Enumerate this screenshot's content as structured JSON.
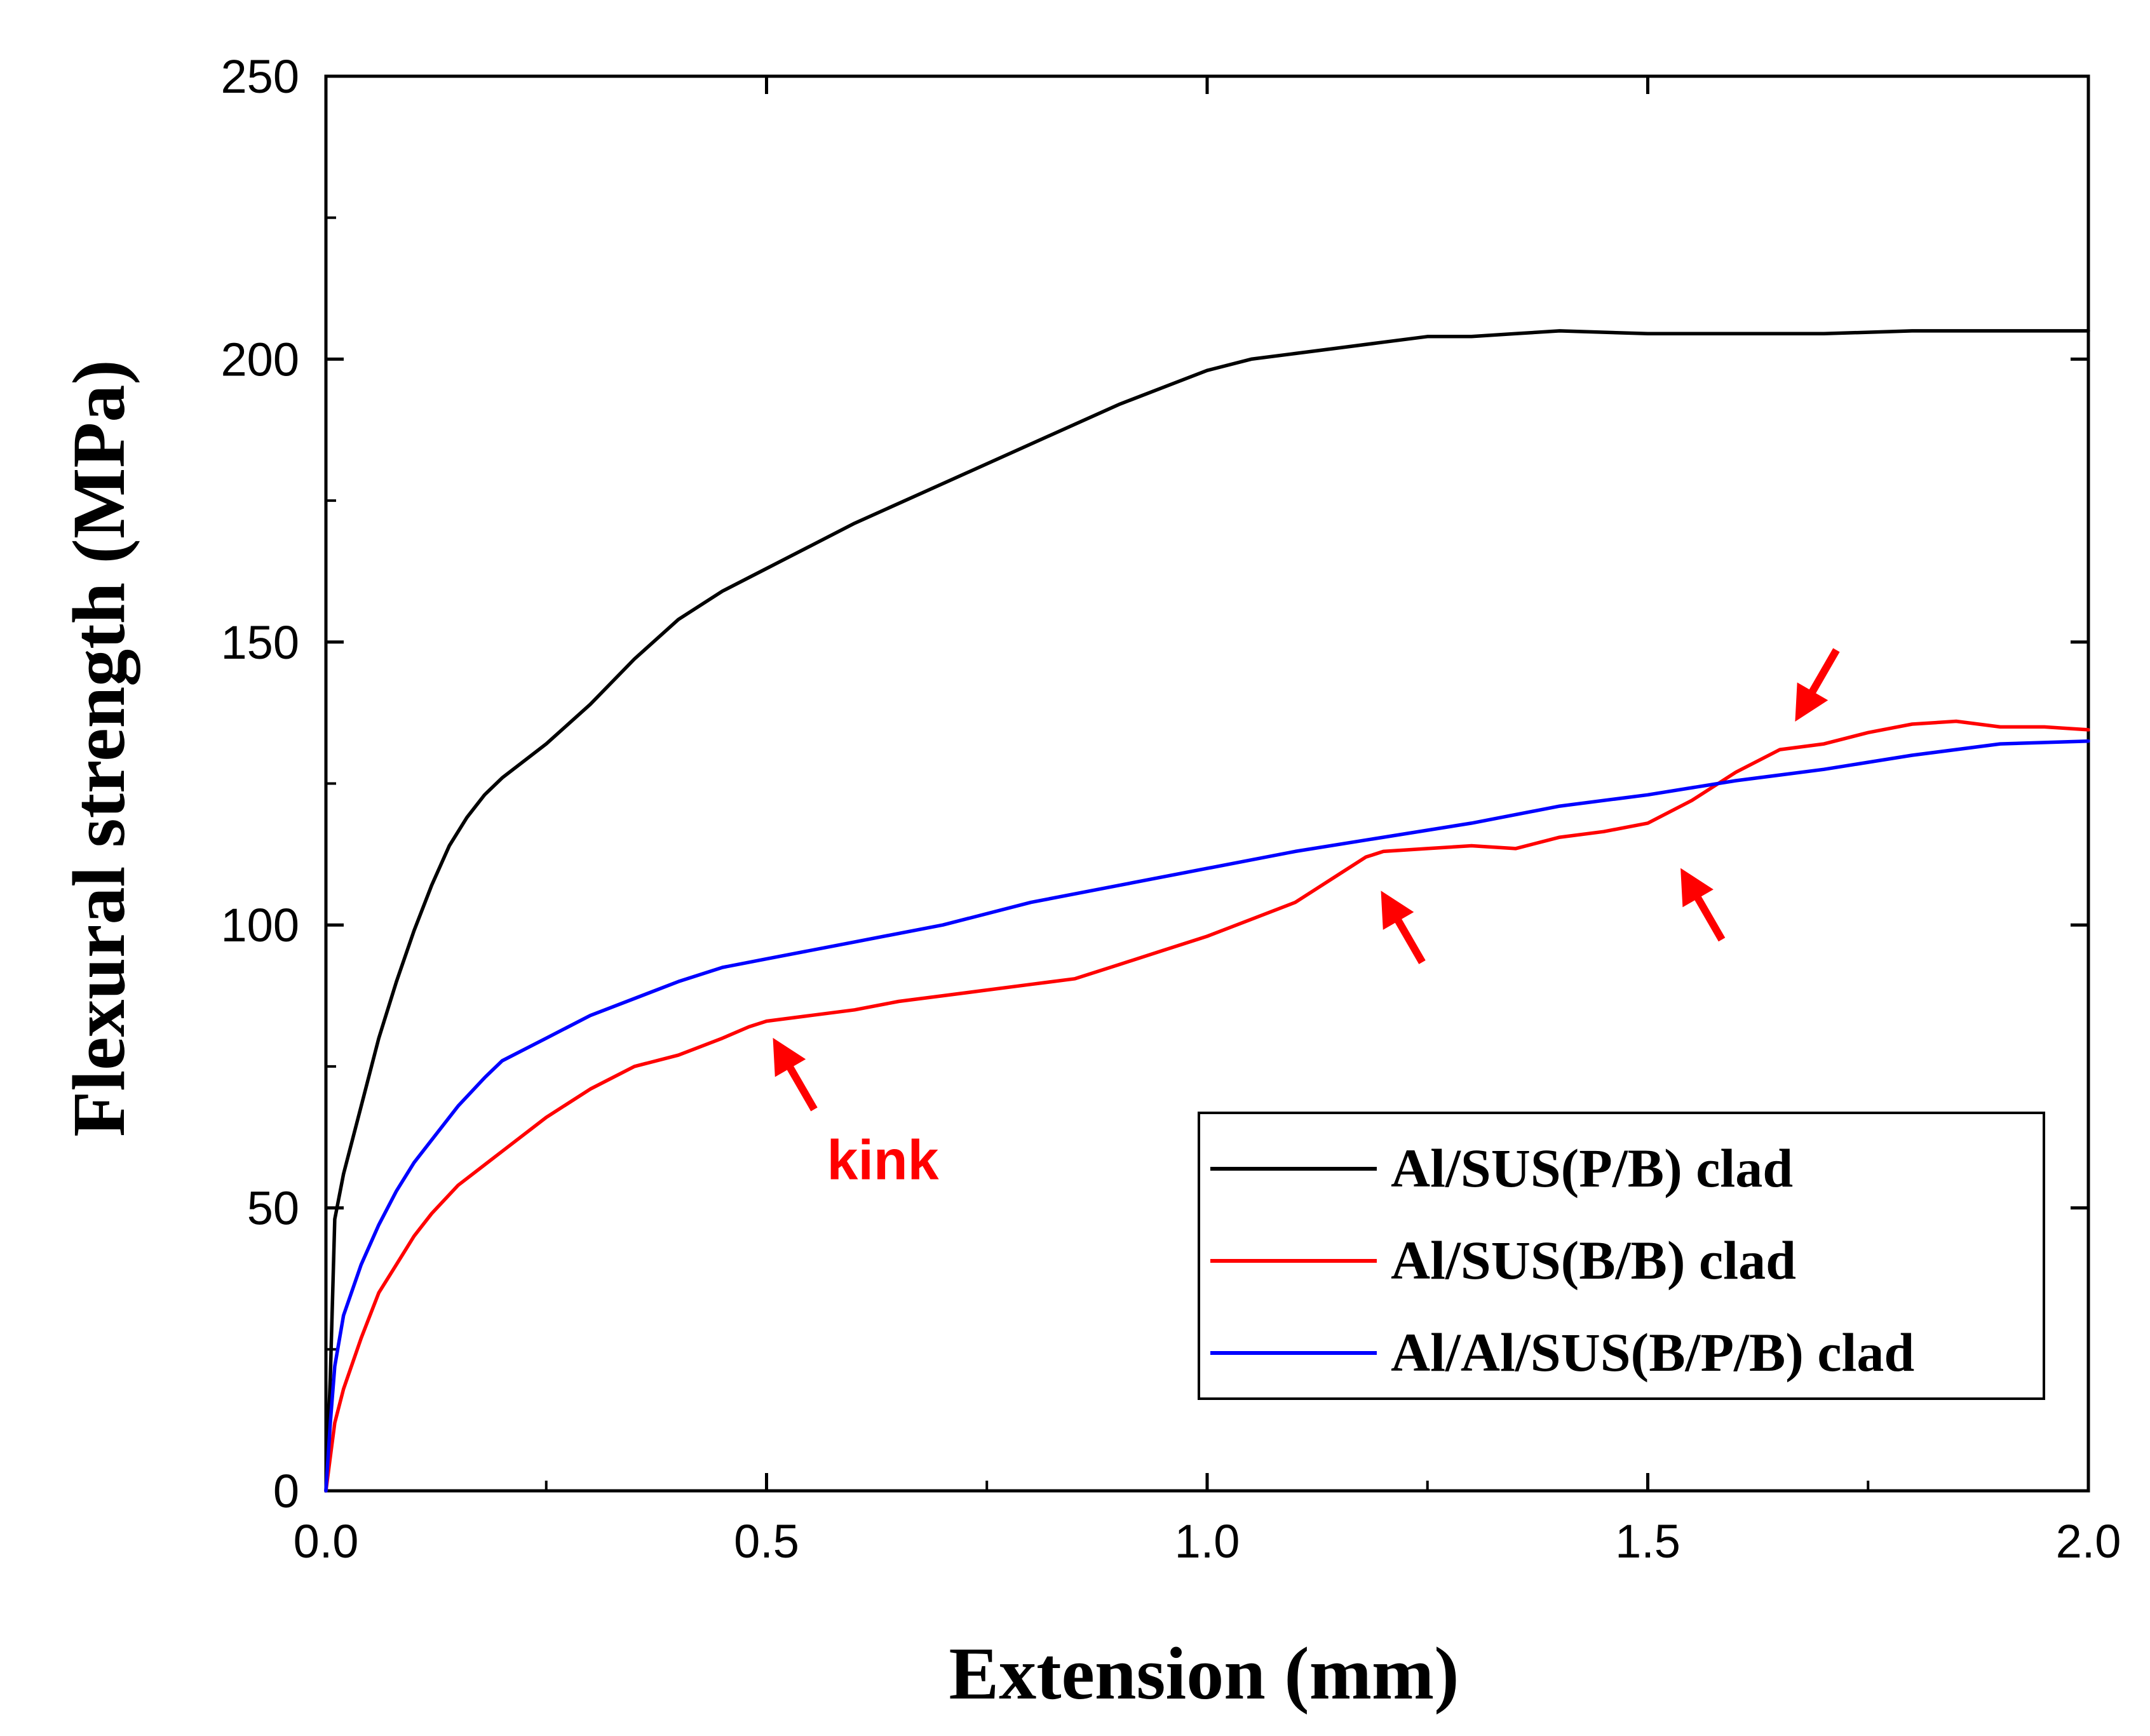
{
  "chart_data": {
    "type": "line",
    "title": "",
    "xlabel": "Extension (mm)",
    "ylabel": "Flexural strength (MPa)",
    "xlim": [
      0,
      2.0
    ],
    "ylim": [
      0,
      250
    ],
    "x_ticks": [
      0.0,
      0.5,
      1.0,
      1.5,
      2.0
    ],
    "x_tick_labels": [
      "0.0",
      "0.5",
      "1.0",
      "1.5",
      "2.0"
    ],
    "y_ticks": [
      0,
      50,
      100,
      150,
      200,
      250
    ],
    "y_tick_labels": [
      "0",
      "50",
      "100",
      "150",
      "200",
      "250"
    ],
    "x_minor_step": 0.25,
    "y_minor_step": 25,
    "grid": false,
    "legend_position": "bottom-right",
    "series": [
      {
        "name": "Al/SUS(P/B) clad",
        "color": "#000000",
        "points": [
          [
            0,
            0
          ],
          [
            0.005,
            20
          ],
          [
            0.01,
            48
          ],
          [
            0.02,
            56
          ],
          [
            0.04,
            68
          ],
          [
            0.06,
            80
          ],
          [
            0.08,
            90
          ],
          [
            0.1,
            99
          ],
          [
            0.12,
            107
          ],
          [
            0.14,
            114
          ],
          [
            0.16,
            119
          ],
          [
            0.18,
            123
          ],
          [
            0.2,
            126
          ],
          [
            0.25,
            132
          ],
          [
            0.3,
            139
          ],
          [
            0.35,
            147
          ],
          [
            0.4,
            154
          ],
          [
            0.45,
            159
          ],
          [
            0.5,
            163
          ],
          [
            0.55,
            167
          ],
          [
            0.6,
            171
          ],
          [
            0.7,
            178
          ],
          [
            0.8,
            185
          ],
          [
            0.9,
            192
          ],
          [
            0.95,
            195
          ],
          [
            1.0,
            198
          ],
          [
            1.05,
            200
          ],
          [
            1.1,
            201
          ],
          [
            1.15,
            202
          ],
          [
            1.2,
            203
          ],
          [
            1.25,
            204
          ],
          [
            1.3,
            204
          ],
          [
            1.35,
            204.5
          ],
          [
            1.4,
            205
          ],
          [
            1.5,
            204.5
          ],
          [
            1.6,
            204.5
          ],
          [
            1.7,
            204.5
          ],
          [
            1.8,
            205
          ],
          [
            1.9,
            205
          ],
          [
            2.0,
            205
          ]
        ]
      },
      {
        "name": "Al/SUS(B/B) clad",
        "color": "#ff0000",
        "points": [
          [
            0,
            0
          ],
          [
            0.005,
            6
          ],
          [
            0.01,
            12
          ],
          [
            0.02,
            18
          ],
          [
            0.04,
            27
          ],
          [
            0.06,
            35
          ],
          [
            0.08,
            40
          ],
          [
            0.1,
            45
          ],
          [
            0.12,
            49
          ],
          [
            0.15,
            54
          ],
          [
            0.2,
            60
          ],
          [
            0.25,
            66
          ],
          [
            0.3,
            71
          ],
          [
            0.35,
            75
          ],
          [
            0.4,
            77
          ],
          [
            0.45,
            80
          ],
          [
            0.48,
            82
          ],
          [
            0.5,
            83
          ],
          [
            0.55,
            84
          ],
          [
            0.6,
            85
          ],
          [
            0.65,
            86.5
          ],
          [
            0.7,
            87.5
          ],
          [
            0.8,
            89.5
          ],
          [
            0.85,
            90.5
          ],
          [
            0.9,
            93
          ],
          [
            0.95,
            95.5
          ],
          [
            1.0,
            98
          ],
          [
            1.05,
            101
          ],
          [
            1.1,
            104
          ],
          [
            1.15,
            109
          ],
          [
            1.18,
            112
          ],
          [
            1.2,
            113
          ],
          [
            1.25,
            113.5
          ],
          [
            1.3,
            114
          ],
          [
            1.35,
            113.5
          ],
          [
            1.4,
            115.5
          ],
          [
            1.45,
            116.5
          ],
          [
            1.5,
            118
          ],
          [
            1.55,
            122
          ],
          [
            1.6,
            127
          ],
          [
            1.65,
            131
          ],
          [
            1.7,
            132
          ],
          [
            1.75,
            134
          ],
          [
            1.8,
            135.5
          ],
          [
            1.85,
            136
          ],
          [
            1.9,
            135
          ],
          [
            1.95,
            135
          ],
          [
            2.0,
            134.5
          ]
        ]
      },
      {
        "name": "Al/Al/SUS(B/P/B) clad",
        "color": "#0000ff",
        "points": [
          [
            0,
            0
          ],
          [
            0.005,
            12
          ],
          [
            0.01,
            22
          ],
          [
            0.02,
            31
          ],
          [
            0.04,
            40
          ],
          [
            0.06,
            47
          ],
          [
            0.08,
            53
          ],
          [
            0.1,
            58
          ],
          [
            0.12,
            62
          ],
          [
            0.15,
            68
          ],
          [
            0.18,
            73
          ],
          [
            0.2,
            76
          ],
          [
            0.25,
            80
          ],
          [
            0.3,
            84
          ],
          [
            0.35,
            87
          ],
          [
            0.4,
            90
          ],
          [
            0.45,
            92.5
          ],
          [
            0.5,
            94
          ],
          [
            0.6,
            97
          ],
          [
            0.7,
            100
          ],
          [
            0.8,
            104
          ],
          [
            0.9,
            107
          ],
          [
            1.0,
            110
          ],
          [
            1.1,
            113
          ],
          [
            1.2,
            115.5
          ],
          [
            1.3,
            118
          ],
          [
            1.4,
            121
          ],
          [
            1.5,
            123
          ],
          [
            1.6,
            125.5
          ],
          [
            1.7,
            127.5
          ],
          [
            1.8,
            130
          ],
          [
            1.9,
            132
          ],
          [
            2.0,
            132.5
          ]
        ]
      }
    ],
    "annotations": [
      {
        "text": "kink",
        "x": 0.5,
        "y": 82
      },
      {
        "text": "",
        "x": 1.19,
        "y": 108
      },
      {
        "text": "",
        "x": 1.53,
        "y": 112
      },
      {
        "text": "",
        "x": 1.66,
        "y": 134
      }
    ],
    "annotation_color": "#ff0000"
  }
}
